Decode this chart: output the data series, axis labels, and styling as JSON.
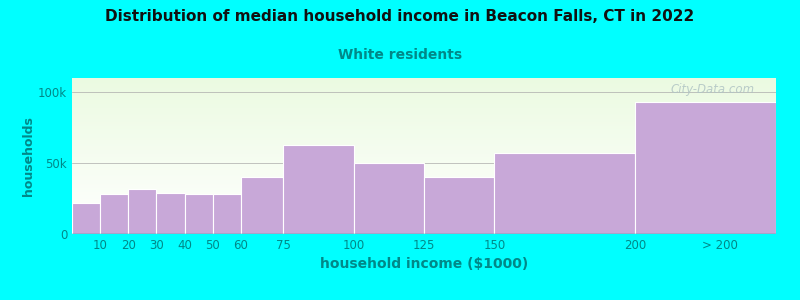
{
  "title": "Distribution of median household income in Beacon Falls, CT in 2022",
  "subtitle": "White residents",
  "xlabel": "household income ($1000)",
  "ylabel": "households",
  "bg_color": "#00FFFF",
  "bar_color": "#c8a8d8",
  "bar_edge_color": "#ffffff",
  "title_color": "#111111",
  "subtitle_color": "#008888",
  "axis_label_color": "#008888",
  "tick_label_color": "#008888",
  "watermark": "City-Data.com",
  "categories": [
    "10",
    "20",
    "30",
    "40",
    "50",
    "60",
    "75",
    "100",
    "125",
    "150",
    "200",
    "> 200"
  ],
  "left_edges": [
    0,
    10,
    20,
    30,
    40,
    50,
    60,
    75,
    100,
    125,
    150,
    200
  ],
  "right_edges": [
    10,
    20,
    30,
    40,
    50,
    60,
    75,
    100,
    125,
    150,
    200,
    250
  ],
  "values": [
    22000,
    28000,
    32000,
    29000,
    28000,
    28000,
    40000,
    63000,
    50000,
    40000,
    57000,
    93000
  ],
  "ylim": [
    0,
    110000
  ],
  "yticks": [
    0,
    50000,
    100000
  ],
  "ytick_labels": [
    "0",
    "50k",
    "100k"
  ],
  "tick_positions": [
    10,
    20,
    30,
    40,
    50,
    60,
    75,
    100,
    125,
    150,
    200,
    230
  ],
  "tick_labels_display": [
    "10",
    "20",
    "30",
    "40",
    "50",
    "60",
    "75",
    "100",
    "125",
    "150",
    "200",
    "> 200"
  ]
}
